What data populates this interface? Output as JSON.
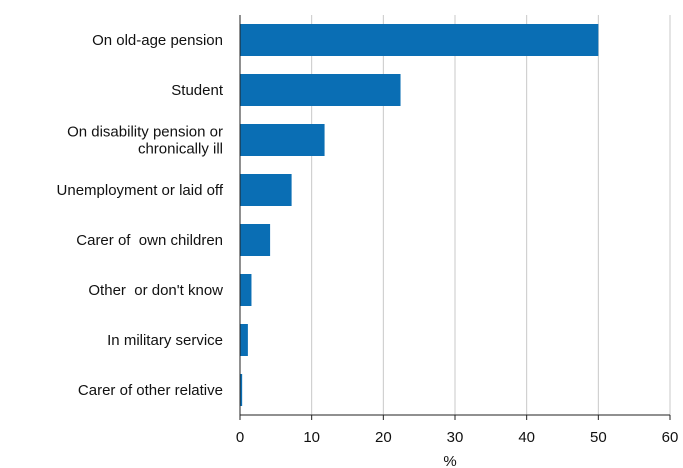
{
  "chart_data": {
    "type": "bar",
    "orientation": "horizontal",
    "categories": [
      [
        "On old-age pension"
      ],
      [
        "Student"
      ],
      [
        "On disability pension or",
        "chronically ill"
      ],
      [
        "Unemployment or laid off"
      ],
      [
        "Carer of  own children"
      ],
      [
        "Other  or don't know"
      ],
      [
        "In military service"
      ],
      [
        "Carer of other relative"
      ]
    ],
    "values": [
      50,
      22.4,
      11.8,
      7.2,
      4.2,
      1.6,
      1.1,
      0.3
    ],
    "xlabel": "%",
    "xlim": [
      0,
      60
    ],
    "xticks": [
      "0",
      "10",
      "20",
      "30",
      "40",
      "50",
      "60"
    ],
    "grid": true,
    "colors": {
      "bar": "#0a6eb4",
      "grid": "#c8c8c8",
      "axis": "#222222"
    }
  }
}
